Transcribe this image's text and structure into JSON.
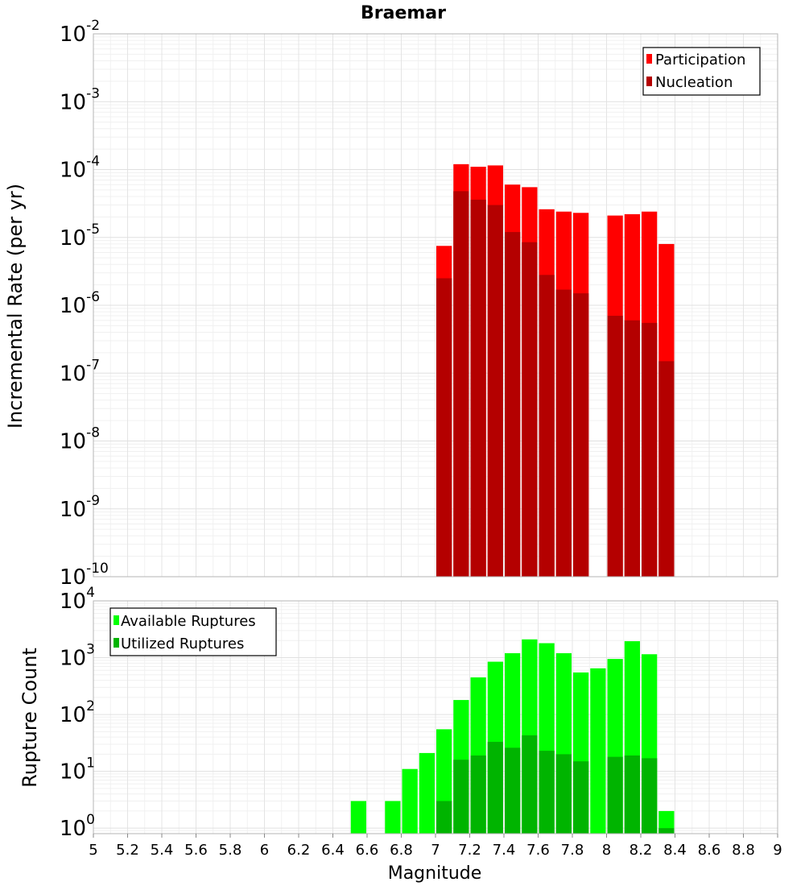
{
  "chart_data": [
    {
      "type": "bar",
      "title": "Braemar",
      "ylabel": "Incremental Rate (per yr)",
      "xlabel": "",
      "yscale": "log",
      "ylim": [
        1e-10,
        0.01
      ],
      "xlim": [
        5,
        9
      ],
      "bar_width": 0.1,
      "yticks": [
        {
          "base": "10",
          "exp": "-10"
        },
        {
          "base": "10",
          "exp": "-9"
        },
        {
          "base": "10",
          "exp": "-8"
        },
        {
          "base": "10",
          "exp": "-7"
        },
        {
          "base": "10",
          "exp": "-6"
        },
        {
          "base": "10",
          "exp": "-5"
        },
        {
          "base": "10",
          "exp": "-4"
        },
        {
          "base": "10",
          "exp": "-3"
        },
        {
          "base": "10",
          "exp": "-2"
        }
      ],
      "legend_position": "top-right",
      "series": [
        {
          "name": "Participation",
          "color": "#ff0000",
          "x": [
            7.05,
            7.15,
            7.25,
            7.35,
            7.45,
            7.55,
            7.65,
            7.75,
            7.85,
            8.05,
            8.15,
            8.25,
            8.35
          ],
          "values": [
            7.5e-06,
            0.00012,
            0.00011,
            0.000115,
            6e-05,
            5.5e-05,
            2.6e-05,
            2.4e-05,
            2.3e-05,
            2.1e-05,
            2.2e-05,
            2.4e-05,
            8e-06
          ]
        },
        {
          "name": "Nucleation",
          "color": "#b40000",
          "x": [
            7.05,
            7.15,
            7.25,
            7.35,
            7.45,
            7.55,
            7.65,
            7.75,
            7.85,
            8.05,
            8.15,
            8.25,
            8.35
          ],
          "values": [
            2.5e-06,
            4.8e-05,
            3.6e-05,
            3e-05,
            1.2e-05,
            8.5e-06,
            2.8e-06,
            1.7e-06,
            1.5e-06,
            7e-07,
            6e-07,
            5.5e-07,
            1.5e-07
          ]
        }
      ]
    },
    {
      "type": "bar",
      "title": "",
      "ylabel": "Rupture Count",
      "xlabel": "Magnitude",
      "yscale": "log",
      "ylim": [
        0.8,
        10000
      ],
      "xlim": [
        5,
        9
      ],
      "bar_width": 0.1,
      "yticks": [
        {
          "value": 1,
          "base": "10",
          "exp": "0"
        },
        {
          "value": 10,
          "base": "10",
          "exp": "1"
        },
        {
          "value": 100,
          "base": "10",
          "exp": "2"
        },
        {
          "value": 1000,
          "base": "10",
          "exp": "3"
        },
        {
          "value": 10000,
          "base": "10",
          "exp": "4"
        }
      ],
      "xticks": [
        "5",
        "5.2",
        "5.4",
        "5.6",
        "5.8",
        "6",
        "6.2",
        "6.4",
        "6.6",
        "6.8",
        "7",
        "7.2",
        "7.4",
        "7.6",
        "7.8",
        "8",
        "8.2",
        "8.4",
        "8.6",
        "8.8",
        "9"
      ],
      "legend_position": "top-left",
      "series": [
        {
          "name": "Available Ruptures",
          "color": "#00ff00",
          "x": [
            6.55,
            6.75,
            6.85,
            6.95,
            7.05,
            7.15,
            7.25,
            7.35,
            7.45,
            7.55,
            7.65,
            7.75,
            7.85,
            7.95,
            8.05,
            8.15,
            8.25,
            8.35
          ],
          "values": [
            3,
            3,
            11,
            21,
            55,
            180,
            450,
            850,
            1200,
            2100,
            1800,
            1200,
            550,
            650,
            950,
            1950,
            1150,
            2
          ]
        },
        {
          "name": "Utilized Ruptures",
          "color": "#00b400",
          "x": [
            7.05,
            7.15,
            7.25,
            7.35,
            7.45,
            7.55,
            7.65,
            7.75,
            7.85,
            8.05,
            8.15,
            8.25,
            8.35
          ],
          "values": [
            3,
            16,
            19,
            33,
            26,
            43,
            23,
            20,
            15,
            18,
            19,
            17,
            1
          ]
        }
      ]
    }
  ]
}
